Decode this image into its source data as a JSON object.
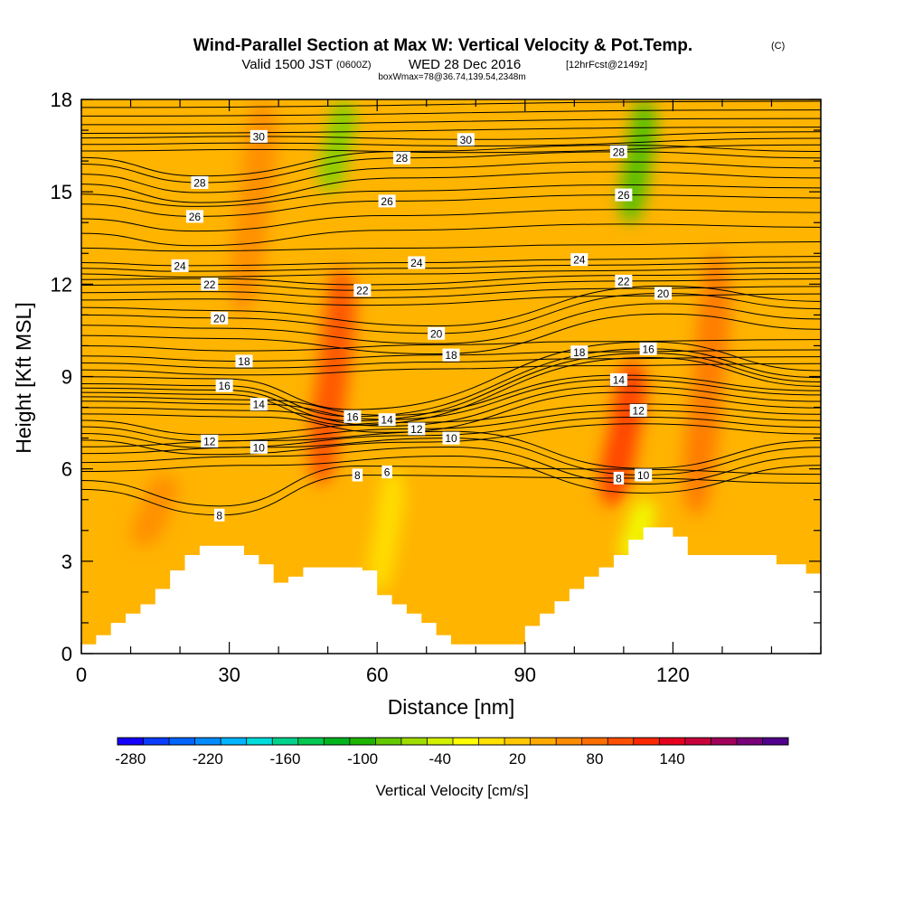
{
  "titles": {
    "main": "Wind-Parallel Section at Max W: Vertical Velocity & Pot.Temp.",
    "main_tag": "(C)",
    "valid_prefix": "Valid 1500 JST",
    "valid_utc": "(0600Z)",
    "valid_date": "WED 28 Dec 2016",
    "forecast": "[12hrFcst@2149z]",
    "boxwmax": "boxWmax=78@36.74,139.54,2348m"
  },
  "colorbar": {
    "title": "Vertical Velocity [cm/s]",
    "tick_labels": [
      "-280",
      "-220",
      "-160",
      "-100",
      "-40",
      "20",
      "80",
      "140"
    ],
    "colors": [
      "#1400ff",
      "#0a3cff",
      "#0064ff",
      "#008cff",
      "#00b4ff",
      "#00dcdc",
      "#00d28c",
      "#00c850",
      "#00b41e",
      "#1eb400",
      "#64c800",
      "#a0dc00",
      "#d2f000",
      "#ffff00",
      "#ffe100",
      "#ffc800",
      "#ffaa00",
      "#ff8c00",
      "#ff6e00",
      "#ff5000",
      "#ff2800",
      "#e6001e",
      "#c8003c",
      "#a0005a",
      "#780078",
      "#50008c"
    ]
  },
  "chart_data": {
    "type": "heatmap",
    "xlabel": "Distance [nm]",
    "ylabel": "Height [Kft MSL]",
    "xlim": [
      0,
      150
    ],
    "ylim": [
      0,
      18
    ],
    "x_ticks": [
      0,
      30,
      60,
      90,
      120
    ],
    "y_ticks": [
      0,
      3,
      6,
      9,
      12,
      15,
      18
    ],
    "background_color": "#ffb400",
    "vertical_velocity_features": [
      {
        "type": "updraft",
        "x_center": 35,
        "y_bottom": 11,
        "y_top": 18,
        "value": 30,
        "color": "#ff8c00"
      },
      {
        "type": "updraft",
        "x_center": 51,
        "y_bottom": 5.5,
        "y_top": 12.5,
        "value": 60,
        "color": "#ff5000"
      },
      {
        "type": "updraft",
        "x_center": 110,
        "y_bottom": 4.8,
        "y_top": 9.5,
        "value": 70,
        "color": "#ff3c00"
      },
      {
        "type": "updraft",
        "x_center": 127,
        "y_bottom": 4.5,
        "y_top": 13,
        "value": 40,
        "color": "#ff7800"
      },
      {
        "type": "updraft",
        "x_center": 15,
        "y_bottom": 3.5,
        "y_top": 5.8,
        "value": 30,
        "color": "#ff8c00"
      },
      {
        "type": "downdraft",
        "x_center": 52,
        "y_bottom": 15,
        "y_top": 18,
        "value": -100,
        "color": "#7cd200"
      },
      {
        "type": "downdraft",
        "x_center": 113,
        "y_bottom": 14,
        "y_top": 18,
        "value": -120,
        "color": "#46c000"
      },
      {
        "type": "downdraft",
        "x_center": 62,
        "y_bottom": 2,
        "y_top": 6,
        "value": -40,
        "color": "#ffe100"
      },
      {
        "type": "downdraft",
        "x_center": 113,
        "y_bottom": 3,
        "y_top": 5,
        "value": -60,
        "color": "#f0ff00"
      }
    ],
    "theta_contours": {
      "labeled_levels": [
        8,
        10,
        12,
        14,
        16,
        18,
        20,
        22,
        24,
        26,
        28,
        30
      ],
      "labels": [
        {
          "text": "30",
          "x": 36,
          "y": 16.8
        },
        {
          "text": "30",
          "x": 78,
          "y": 16.7
        },
        {
          "text": "28",
          "x": 24,
          "y": 15.3
        },
        {
          "text": "28",
          "x": 65,
          "y": 16.1
        },
        {
          "text": "28",
          "x": 109,
          "y": 16.3
        },
        {
          "text": "26",
          "x": 23,
          "y": 14.2
        },
        {
          "text": "26",
          "x": 62,
          "y": 14.7
        },
        {
          "text": "26",
          "x": 110,
          "y": 14.9
        },
        {
          "text": "24",
          "x": 20,
          "y": 12.6
        },
        {
          "text": "24",
          "x": 68,
          "y": 12.7
        },
        {
          "text": "24",
          "x": 101,
          "y": 12.8
        },
        {
          "text": "22",
          "x": 26,
          "y": 12.0
        },
        {
          "text": "22",
          "x": 57,
          "y": 11.8
        },
        {
          "text": "22",
          "x": 110,
          "y": 12.1
        },
        {
          "text": "20",
          "x": 28,
          "y": 10.9
        },
        {
          "text": "20",
          "x": 72,
          "y": 10.4
        },
        {
          "text": "20",
          "x": 118,
          "y": 11.7
        },
        {
          "text": "18",
          "x": 33,
          "y": 9.5
        },
        {
          "text": "18",
          "x": 75,
          "y": 9.7
        },
        {
          "text": "18",
          "x": 101,
          "y": 9.8
        },
        {
          "text": "16",
          "x": 29,
          "y": 8.7
        },
        {
          "text": "16",
          "x": 55,
          "y": 7.7
        },
        {
          "text": "16",
          "x": 115,
          "y": 9.9
        },
        {
          "text": "14",
          "x": 36,
          "y": 8.1
        },
        {
          "text": "14",
          "x": 62,
          "y": 7.6
        },
        {
          "text": "14",
          "x": 109,
          "y": 8.9
        },
        {
          "text": "12",
          "x": 26,
          "y": 6.9
        },
        {
          "text": "12",
          "x": 68,
          "y": 7.3
        },
        {
          "text": "12",
          "x": 113,
          "y": 7.9
        },
        {
          "text": "10",
          "x": 36,
          "y": 6.7
        },
        {
          "text": "10",
          "x": 75,
          "y": 7.0
        },
        {
          "text": "10",
          "x": 114,
          "y": 5.8
        },
        {
          "text": "8",
          "x": 28,
          "y": 4.5
        },
        {
          "text": "8",
          "x": 56,
          "y": 5.8
        },
        {
          "text": "8",
          "x": 109,
          "y": 5.7
        },
        {
          "text": "6",
          "x": 62,
          "y": 5.9
        }
      ]
    },
    "terrain": {
      "color": "#ffffff",
      "x": [
        0,
        3,
        6,
        9,
        12,
        15,
        18,
        21,
        24,
        27,
        30,
        33,
        36,
        39,
        42,
        45,
        48,
        51,
        54,
        57,
        60,
        63,
        66,
        69,
        72,
        75,
        78,
        81,
        84,
        87,
        90,
        93,
        96,
        99,
        102,
        105,
        108,
        111,
        114,
        117,
        120,
        123,
        126,
        129,
        132,
        135,
        138,
        141,
        144,
        147,
        150
      ],
      "height": [
        0.3,
        0.6,
        1.0,
        1.3,
        1.6,
        2.1,
        2.7,
        3.2,
        3.5,
        3.5,
        3.5,
        3.2,
        2.9,
        2.3,
        2.5,
        2.8,
        2.8,
        2.8,
        2.8,
        2.7,
        1.9,
        1.6,
        1.3,
        1.0,
        0.6,
        0.3,
        0.3,
        0.3,
        0.3,
        0.3,
        0.9,
        1.3,
        1.7,
        2.1,
        2.5,
        2.8,
        3.2,
        3.7,
        4.1,
        4.1,
        3.8,
        3.2,
        3.2,
        3.2,
        3.2,
        3.2,
        3.2,
        2.9,
        2.9,
        2.6,
        2.6
      ]
    }
  }
}
